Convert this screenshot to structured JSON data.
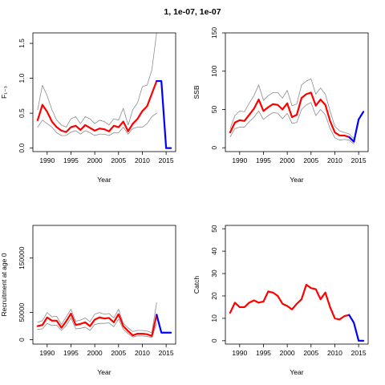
{
  "title": "1, 1e-07, 1e-07",
  "chart_data": [
    {
      "type": "line",
      "xlabel": "Year",
      "ylabel": "F₁₋₃",
      "xlim": [
        1987,
        2017
      ],
      "ylim": [
        -0.05,
        1.65
      ],
      "xticks": [
        1990,
        1995,
        2000,
        2005,
        2010,
        2015
      ],
      "yticks": [
        0.0,
        0.5,
        1.0,
        1.5
      ],
      "ytick_labels": [
        "0.0",
        "0.5",
        "1.0",
        "1.5"
      ],
      "series": [
        {
          "role": "upper-ci",
          "color": "#8c8c8c",
          "x": [
            1988,
            1989,
            1990,
            1991,
            1992,
            1993,
            1994,
            1995,
            1996,
            1997,
            1998,
            1999,
            2000,
            2001,
            2002,
            2003,
            2004,
            2005,
            2006,
            2007,
            2008,
            2009,
            2010,
            2011,
            2012,
            2013
          ],
          "values": [
            0.55,
            0.9,
            0.75,
            0.55,
            0.4,
            0.33,
            0.3,
            0.42,
            0.45,
            0.35,
            0.45,
            0.42,
            0.35,
            0.4,
            0.38,
            0.33,
            0.42,
            0.4,
            0.57,
            0.33,
            0.55,
            0.65,
            0.88,
            0.9,
            1.12,
            1.65
          ]
        },
        {
          "role": "lower-ci",
          "color": "#8c8c8c",
          "x": [
            1988,
            1989,
            1990,
            1991,
            1992,
            1993,
            1994,
            1995,
            1996,
            1997,
            1998,
            1999,
            2000,
            2001,
            2002,
            2003,
            2004,
            2005,
            2006,
            2007,
            2008,
            2009,
            2010,
            2011,
            2012,
            2013
          ],
          "values": [
            0.3,
            0.4,
            0.35,
            0.3,
            0.22,
            0.18,
            0.18,
            0.23,
            0.25,
            0.2,
            0.25,
            0.22,
            0.18,
            0.2,
            0.2,
            0.18,
            0.22,
            0.22,
            0.3,
            0.2,
            0.28,
            0.3,
            0.3,
            0.35,
            0.45,
            0.5
          ]
        },
        {
          "role": "estimate",
          "color": "#ff0000",
          "x": [
            1988,
            1989,
            1990,
            1991,
            1992,
            1993,
            1994,
            1995,
            1996,
            1997,
            1998,
            1999,
            2000,
            2001,
            2002,
            2003,
            2004,
            2005,
            2006,
            2007,
            2008,
            2009,
            2010,
            2011,
            2012,
            2013
          ],
          "values": [
            0.4,
            0.62,
            0.52,
            0.38,
            0.3,
            0.25,
            0.23,
            0.3,
            0.32,
            0.26,
            0.33,
            0.29,
            0.25,
            0.28,
            0.27,
            0.24,
            0.32,
            0.3,
            0.38,
            0.24,
            0.35,
            0.42,
            0.53,
            0.6,
            0.78,
            0.96
          ]
        },
        {
          "role": "projection",
          "color": "#0000ff",
          "x": [
            2013,
            2014,
            2015,
            2016
          ],
          "values": [
            0.96,
            0.96,
            0.0,
            0.0
          ]
        }
      ]
    },
    {
      "type": "line",
      "xlabel": "Year",
      "ylabel": "SSB",
      "xlim": [
        1987,
        2017
      ],
      "ylim": [
        -5,
        150
      ],
      "xticks": [
        1990,
        1995,
        2000,
        2005,
        2010,
        2015
      ],
      "yticks": [
        0,
        50,
        100,
        150
      ],
      "ytick_labels": [
        "0",
        "50",
        "100",
        "150"
      ],
      "series": [
        {
          "role": "upper-ci",
          "color": "#8c8c8c",
          "x": [
            1988,
            1989,
            1990,
            1991,
            1992,
            1993,
            1994,
            1995,
            1996,
            1997,
            1998,
            1999,
            2000,
            2001,
            2002,
            2003,
            2004,
            2005,
            2006,
            2007,
            2008,
            2009,
            2010,
            2011,
            2012,
            2013,
            2014
          ],
          "values": [
            25,
            42,
            48,
            47,
            58,
            68,
            82,
            62,
            68,
            72,
            72,
            65,
            75,
            55,
            57,
            82,
            87,
            90,
            70,
            78,
            70,
            48,
            28,
            22,
            20,
            18,
            12
          ]
        },
        {
          "role": "lower-ci",
          "color": "#8c8c8c",
          "x": [
            1988,
            1989,
            1990,
            1991,
            1992,
            1993,
            1994,
            1995,
            1996,
            1997,
            1998,
            1999,
            2000,
            2001,
            2002,
            2003,
            2004,
            2005,
            2006,
            2007,
            2008,
            2009,
            2010,
            2011,
            2012,
            2013,
            2014
          ],
          "values": [
            14,
            25,
            27,
            27,
            34,
            40,
            48,
            37,
            42,
            46,
            45,
            38,
            45,
            32,
            33,
            50,
            56,
            59,
            42,
            50,
            43,
            25,
            13,
            10,
            11,
            10,
            5
          ]
        },
        {
          "role": "estimate",
          "color": "#ff0000",
          "x": [
            1988,
            1989,
            1990,
            1991,
            1992,
            1993,
            1994,
            1995,
            1996,
            1997,
            1998,
            1999,
            2000,
            2001,
            2002,
            2003,
            2004,
            2005,
            2006,
            2007,
            2008,
            2009,
            2010,
            2011,
            2012,
            2013,
            2014
          ],
          "values": [
            20,
            33,
            36,
            35,
            43,
            51,
            63,
            48,
            53,
            57,
            56,
            50,
            58,
            40,
            43,
            65,
            70,
            72,
            55,
            63,
            56,
            35,
            20,
            16,
            16,
            14,
            8
          ]
        },
        {
          "role": "projection",
          "color": "#0000ff",
          "x": [
            2013,
            2014,
            2015,
            2016
          ],
          "values": [
            14,
            8,
            37,
            47
          ]
        }
      ]
    },
    {
      "type": "line",
      "xlabel": "Year",
      "ylabel": "Recruitment at age 0",
      "xlim": [
        1987,
        2017
      ],
      "ylim": [
        -8000,
        210000
      ],
      "xticks": [
        1990,
        1995,
        2000,
        2005,
        2010,
        2015
      ],
      "yticks": [
        0,
        50000,
        150000
      ],
      "ytick_labels": [
        "0",
        "50000",
        "150000"
      ],
      "series": [
        {
          "role": "upper-ci",
          "color": "#8c8c8c",
          "x": [
            1988,
            1989,
            1990,
            1991,
            1992,
            1993,
            1994,
            1995,
            1996,
            1997,
            1998,
            1999,
            2000,
            2001,
            2002,
            2003,
            2004,
            2005,
            2006,
            2007,
            2008,
            2009,
            2010,
            2011,
            2012,
            2013
          ],
          "values": [
            32000,
            35000,
            50000,
            42000,
            43000,
            28000,
            42000,
            56000,
            34000,
            36000,
            40000,
            33000,
            47000,
            50000,
            47000,
            48000,
            40000,
            56000,
            30000,
            22000,
            15000,
            17000,
            17000,
            16000,
            13000,
            68000
          ]
        },
        {
          "role": "lower-ci",
          "color": "#8c8c8c",
          "x": [
            1988,
            1989,
            1990,
            1991,
            1992,
            1993,
            1994,
            1995,
            1996,
            1997,
            1998,
            1999,
            2000,
            2001,
            2002,
            2003,
            2004,
            2005,
            2006,
            2007,
            2008,
            2009,
            2010,
            2011,
            2012,
            2013
          ],
          "values": [
            19000,
            20000,
            30000,
            26000,
            27000,
            17000,
            26000,
            40000,
            20000,
            21000,
            23000,
            17000,
            28000,
            30000,
            30000,
            31000,
            24000,
            38000,
            19000,
            11000,
            5000,
            7000,
            7000,
            6000,
            4000,
            30000
          ]
        },
        {
          "role": "estimate",
          "color": "#ff0000",
          "x": [
            1988,
            1989,
            1990,
            1991,
            1992,
            1993,
            1994,
            1995,
            1996,
            1997,
            1998,
            1999,
            2000,
            2001,
            2002,
            2003,
            2004,
            2005,
            2006,
            2007,
            2008,
            2009,
            2010,
            2011,
            2012,
            2013
          ],
          "values": [
            25000,
            27000,
            41000,
            35000,
            35000,
            22000,
            34000,
            48000,
            27000,
            29000,
            32000,
            25000,
            37000,
            41000,
            39000,
            40000,
            32000,
            47000,
            25000,
            16000,
            8000,
            11000,
            11000,
            10000,
            7000,
            46000
          ]
        },
        {
          "role": "projection",
          "color": "#0000ff",
          "x": [
            2013,
            2014,
            2015,
            2016
          ],
          "values": [
            46000,
            13000,
            13000,
            13000
          ]
        }
      ]
    },
    {
      "type": "line",
      "xlabel": "Year",
      "ylabel": "Catch",
      "xlim": [
        1987,
        2017
      ],
      "ylim": [
        -1.5,
        51.5
      ],
      "xticks": [
        1990,
        1995,
        2000,
        2005,
        2010,
        2015
      ],
      "yticks": [
        0,
        10,
        20,
        30,
        40,
        50
      ],
      "ytick_labels": [
        "0",
        "10",
        "20",
        "30",
        "40",
        "50"
      ],
      "series": [
        {
          "role": "estimate",
          "color": "#ff0000",
          "x": [
            1988,
            1989,
            1990,
            1991,
            1992,
            1993,
            1994,
            1995,
            1996,
            1997,
            1998,
            1999,
            2000,
            2001,
            2002,
            2003,
            2004,
            2005,
            2006,
            2007,
            2008,
            2009,
            2010,
            2011,
            2012,
            2013
          ],
          "values": [
            12.5,
            17,
            15,
            15,
            17,
            18,
            17,
            17.5,
            22,
            21.5,
            20,
            16.5,
            15.5,
            14,
            16.5,
            18.5,
            25,
            23.5,
            23,
            18.5,
            21.5,
            15,
            10,
            9.5,
            11,
            11.5
          ]
        },
        {
          "role": "projection",
          "color": "#0000ff",
          "x": [
            2013,
            2014,
            2015,
            2016
          ],
          "values": [
            11.5,
            8,
            0,
            0
          ]
        }
      ]
    }
  ]
}
